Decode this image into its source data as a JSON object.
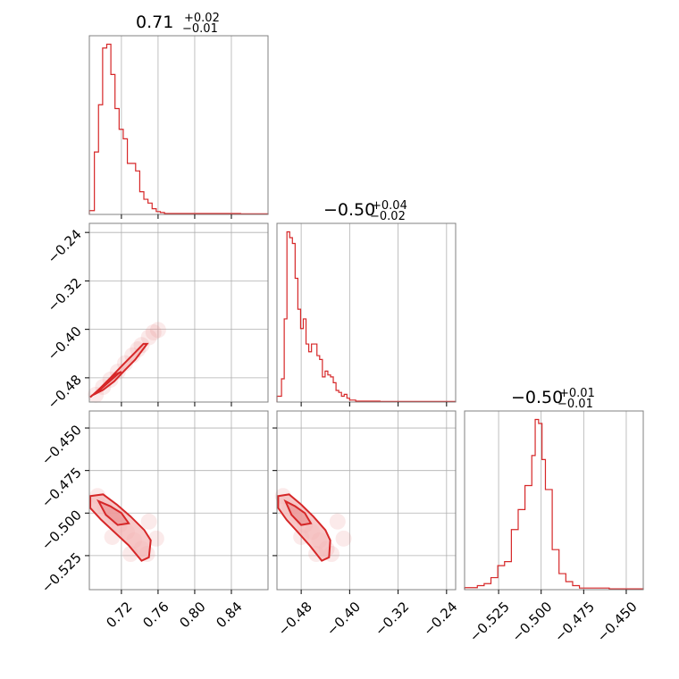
{
  "colors": {
    "series": "#d62728",
    "grid": "#b0b0b0",
    "frame": "#808080",
    "scatter": "#e98a8a",
    "contour_fill": "#f4b8b8"
  },
  "chart_data": [
    {
      "type": "histogram",
      "panel": "x_marginal",
      "grid": true,
      "title": {
        "main": "0.71",
        "upper": "+0.02",
        "lower": "−0.01"
      },
      "xlim": [
        0.685,
        0.88
      ],
      "xticks": [
        {
          "value": 0.72,
          "label": "0.72"
        },
        {
          "value": 0.76,
          "label": "0.76"
        },
        {
          "value": 0.8,
          "label": "0.80"
        },
        {
          "value": 0.84,
          "label": "0.84"
        }
      ],
      "bins": [
        0.685,
        0.6905,
        0.695,
        0.6995,
        0.704,
        0.7085,
        0.713,
        0.7175,
        0.722,
        0.7265,
        0.731,
        0.7355,
        0.74,
        0.7445,
        0.749,
        0.7535,
        0.758,
        0.7625,
        0.767,
        0.775,
        0.85,
        0.88
      ],
      "counts": [
        2,
        33,
        58,
        88,
        90,
        74,
        56,
        45,
        40,
        27,
        27,
        23,
        12,
        8,
        6,
        3,
        1.5,
        1,
        0.5,
        0.5,
        0.3
      ]
    },
    {
      "type": "histogram",
      "panel": "y_marginal",
      "grid": true,
      "title": {
        "main": "−0.50",
        "upper": "+0.04",
        "lower": "−0.02"
      },
      "xlim": [
        -0.52,
        -0.225
      ],
      "xticks": [
        {
          "value": -0.48,
          "label": "−0.48"
        },
        {
          "value": -0.4,
          "label": "−0.40"
        },
        {
          "value": -0.32,
          "label": "−0.32"
        },
        {
          "value": -0.24,
          "label": "−0.24"
        }
      ],
      "bins": [
        -0.52,
        -0.5125,
        -0.508,
        -0.5035,
        -0.499,
        -0.4945,
        -0.49,
        -0.4855,
        -0.481,
        -0.4765,
        -0.472,
        -0.4675,
        -0.463,
        -0.4585,
        -0.454,
        -0.4495,
        -0.445,
        -0.4405,
        -0.436,
        -0.4315,
        -0.427,
        -0.4225,
        -0.418,
        -0.4135,
        -0.409,
        -0.4045,
        -0.4,
        -0.39,
        -0.35,
        -0.225
      ],
      "counts": [
        3,
        12,
        43,
        88,
        85,
        82,
        64,
        48,
        38,
        43,
        30,
        26,
        30,
        30,
        24,
        22,
        13,
        16,
        14,
        13,
        10,
        6,
        5,
        3,
        4,
        2,
        1,
        0.5,
        0.3
      ]
    },
    {
      "type": "histogram",
      "panel": "z_marginal",
      "grid": true,
      "title": {
        "main": "−0.50",
        "upper": "+0.01",
        "lower": "−0.01"
      },
      "xlim": [
        -0.545,
        -0.44
      ],
      "xticks": [
        {
          "value": -0.525,
          "label": "−0.525"
        },
        {
          "value": -0.5,
          "label": "−0.500"
        },
        {
          "value": -0.475,
          "label": "−0.475"
        },
        {
          "value": -0.45,
          "label": "−0.450"
        }
      ],
      "bins": [
        -0.545,
        -0.5375,
        -0.5335,
        -0.5295,
        -0.5255,
        -0.5215,
        -0.5175,
        -0.5135,
        -0.5095,
        -0.5055,
        -0.5035,
        -0.5015,
        -0.4995,
        -0.4975,
        -0.4935,
        -0.4895,
        -0.4855,
        -0.4815,
        -0.4775,
        -0.46,
        -0.44
      ],
      "counts": [
        1,
        2,
        3,
        6,
        12,
        14,
        30,
        40,
        52,
        67,
        85,
        83,
        65,
        50,
        20,
        8,
        4,
        2,
        0.8,
        0.4
      ]
    },
    {
      "type": "scatter",
      "panel": "x_vs_y",
      "grid": true,
      "xlim": [
        0.685,
        0.88
      ],
      "ylim": [
        -0.52,
        -0.225
      ],
      "yticks": [
        {
          "value": -0.24,
          "label": "−0.24"
        },
        {
          "value": -0.32,
          "label": "−0.32"
        },
        {
          "value": -0.4,
          "label": "−0.40"
        },
        {
          "value": -0.48,
          "label": "−0.48"
        }
      ],
      "points": [
        [
          0.692,
          -0.508
        ],
        [
          0.7,
          -0.495
        ],
        [
          0.708,
          -0.483
        ],
        [
          0.716,
          -0.47
        ],
        [
          0.724,
          -0.456
        ],
        [
          0.732,
          -0.443
        ],
        [
          0.738,
          -0.433
        ],
        [
          0.742,
          -0.426
        ],
        [
          0.75,
          -0.413
        ],
        [
          0.755,
          -0.405
        ],
        [
          0.76,
          -0.401
        ]
      ],
      "contour_outer": [
        [
          0.688,
          -0.509
        ],
        [
          0.7,
          -0.5
        ],
        [
          0.712,
          -0.486
        ],
        [
          0.724,
          -0.467
        ],
        [
          0.735,
          -0.45
        ],
        [
          0.745,
          -0.43
        ],
        [
          0.748,
          -0.424
        ],
        [
          0.744,
          -0.424
        ],
        [
          0.735,
          -0.438
        ],
        [
          0.722,
          -0.458
        ],
        [
          0.708,
          -0.48
        ],
        [
          0.695,
          -0.5
        ],
        [
          0.686,
          -0.512
        ]
      ],
      "contour_inner": [
        [
          0.692,
          -0.506
        ],
        [
          0.704,
          -0.49
        ],
        [
          0.716,
          -0.474
        ],
        [
          0.72,
          -0.47
        ],
        [
          0.714,
          -0.474
        ],
        [
          0.702,
          -0.49
        ],
        [
          0.69,
          -0.507
        ]
      ]
    },
    {
      "type": "scatter",
      "panel": "x_vs_z",
      "grid": true,
      "xlim": [
        0.685,
        0.88
      ],
      "ylim": [
        -0.545,
        -0.44
      ],
      "yticks": [
        {
          "value": -0.45,
          "label": "−0.450"
        },
        {
          "value": -0.475,
          "label": "−0.475"
        },
        {
          "value": -0.5,
          "label": "−0.500"
        },
        {
          "value": -0.525,
          "label": "−0.525"
        }
      ],
      "points": [
        [
          0.694,
          -0.49
        ],
        [
          0.702,
          -0.497
        ],
        [
          0.71,
          -0.502
        ],
        [
          0.718,
          -0.507
        ],
        [
          0.726,
          -0.511
        ],
        [
          0.734,
          -0.516
        ],
        [
          0.742,
          -0.521
        ],
        [
          0.748,
          -0.524
        ],
        [
          0.73,
          -0.524
        ],
        [
          0.71,
          -0.514
        ],
        [
          0.75,
          -0.505
        ],
        [
          0.758,
          -0.515
        ]
      ],
      "contour_outer": [
        [
          0.686,
          -0.49
        ],
        [
          0.7,
          -0.489
        ],
        [
          0.715,
          -0.495
        ],
        [
          0.73,
          -0.502
        ],
        [
          0.745,
          -0.51
        ],
        [
          0.752,
          -0.516
        ],
        [
          0.75,
          -0.526
        ],
        [
          0.742,
          -0.528
        ],
        [
          0.728,
          -0.519
        ],
        [
          0.712,
          -0.511
        ],
        [
          0.698,
          -0.504
        ],
        [
          0.686,
          -0.497
        ]
      ],
      "contour_inner": [
        [
          0.695,
          -0.493
        ],
        [
          0.708,
          -0.496
        ],
        [
          0.72,
          -0.5
        ],
        [
          0.728,
          -0.506
        ],
        [
          0.716,
          -0.507
        ],
        [
          0.703,
          -0.501
        ]
      ]
    },
    {
      "type": "scatter",
      "panel": "y_vs_z",
      "grid": true,
      "xlim": [
        -0.52,
        -0.225
      ],
      "ylim": [
        -0.545,
        -0.44
      ],
      "points": [
        [
          -0.51,
          -0.49
        ],
        [
          -0.498,
          -0.497
        ],
        [
          -0.486,
          -0.502
        ],
        [
          -0.474,
          -0.507
        ],
        [
          -0.462,
          -0.511
        ],
        [
          -0.45,
          -0.516
        ],
        [
          -0.438,
          -0.521
        ],
        [
          -0.43,
          -0.524
        ],
        [
          -0.455,
          -0.524
        ],
        [
          -0.48,
          -0.514
        ],
        [
          -0.42,
          -0.505
        ],
        [
          -0.41,
          -0.515
        ]
      ],
      "contour_outer": [
        [
          -0.518,
          -0.49
        ],
        [
          -0.5,
          -0.489
        ],
        [
          -0.48,
          -0.495
        ],
        [
          -0.46,
          -0.502
        ],
        [
          -0.44,
          -0.51
        ],
        [
          -0.432,
          -0.516
        ],
        [
          -0.434,
          -0.526
        ],
        [
          -0.446,
          -0.528
        ],
        [
          -0.466,
          -0.519
        ],
        [
          -0.486,
          -0.511
        ],
        [
          -0.504,
          -0.504
        ],
        [
          -0.518,
          -0.497
        ]
      ],
      "contour_inner": [
        [
          -0.506,
          -0.493
        ],
        [
          -0.49,
          -0.496
        ],
        [
          -0.474,
          -0.5
        ],
        [
          -0.464,
          -0.506
        ],
        [
          -0.48,
          -0.507
        ],
        [
          -0.496,
          -0.501
        ]
      ]
    }
  ]
}
